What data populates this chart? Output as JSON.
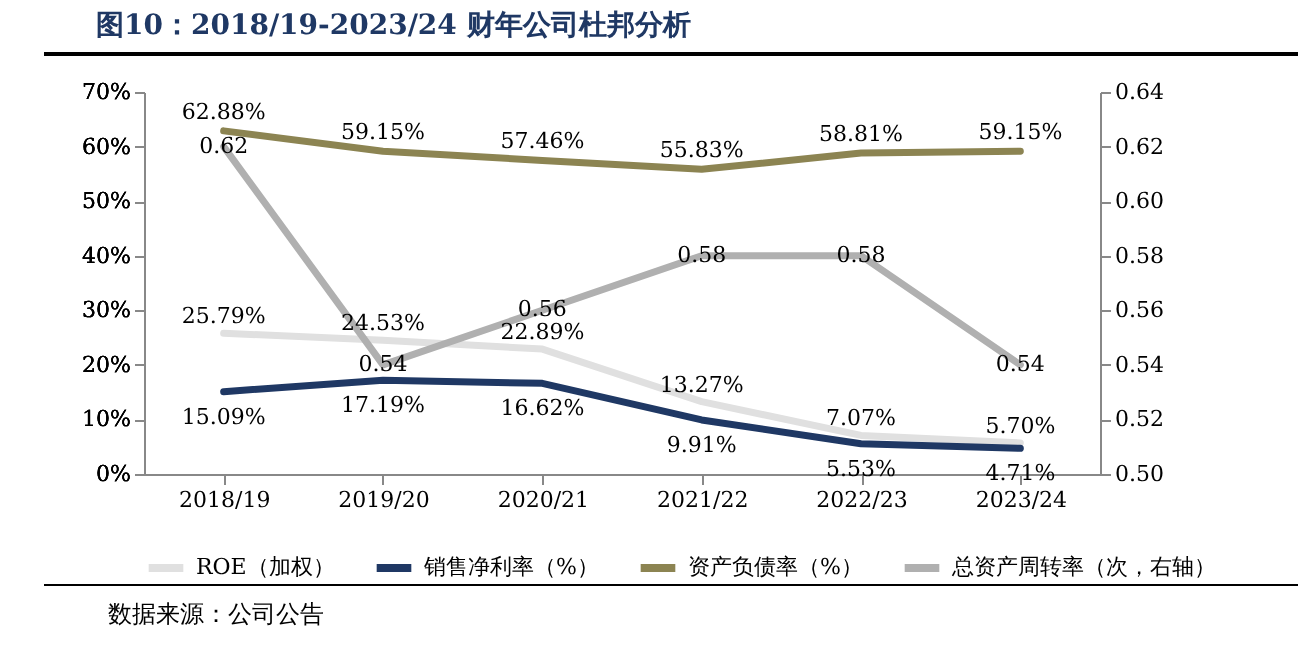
{
  "chart_data": {
    "type": "line",
    "title": "图10：2018/19-2023/24 财年公司杜邦分析",
    "categories": [
      "2018/19",
      "2019/20",
      "2020/21",
      "2021/22",
      "2022/23",
      "2023/24"
    ],
    "series": [
      {
        "name": "ROE（加权）",
        "color": "#e0e0e0",
        "values": [
          25.79,
          24.53,
          22.89,
          13.27,
          7.07,
          5.7
        ],
        "value_labels": [
          "25.79%",
          "24.53%",
          "22.89%",
          "13.27%",
          "7.07%",
          "5.70%"
        ]
      },
      {
        "name": "销售净利率（%）",
        "color": "#1f3864",
        "values": [
          15.09,
          17.19,
          16.62,
          9.91,
          5.53,
          4.71
        ],
        "value_labels": [
          "15.09%",
          "17.19%",
          "16.62%",
          "9.91%",
          "5.53%",
          "4.71%"
        ]
      },
      {
        "name": "资产负债率（%）",
        "color": "#8c8452",
        "values": [
          62.88,
          59.15,
          57.46,
          55.83,
          58.81,
          59.15
        ],
        "value_labels": [
          "62.88%",
          "59.15%",
          "57.46%",
          "55.83%",
          "58.81%",
          "59.15%"
        ]
      },
      {
        "name": "总资产周转率（次，右轴）",
        "color": "#b0b0b0",
        "axis": "y2",
        "values": [
          0.62,
          0.54,
          0.56,
          0.58,
          0.58,
          0.54
        ],
        "value_labels": [
          "0.62",
          "0.54",
          "0.56",
          "0.58",
          "0.58",
          "0.54"
        ]
      }
    ],
    "ylim": [
      0,
      70
    ],
    "yticks": [
      {
        "value": 0,
        "label": "0%"
      },
      {
        "value": 10,
        "label": "10%"
      },
      {
        "value": 20,
        "label": "20%"
      },
      {
        "value": 30,
        "label": "30%"
      },
      {
        "value": 40,
        "label": "40%"
      },
      {
        "value": 50,
        "label": "50%"
      },
      {
        "value": 60,
        "label": "60%"
      },
      {
        "value": 70,
        "label": "70%"
      }
    ],
    "y2lim": [
      0.5,
      0.64
    ],
    "y2ticks": [
      {
        "value": 0.5,
        "label": "0.50"
      },
      {
        "value": 0.52,
        "label": "0.52"
      },
      {
        "value": 0.54,
        "label": "0.54"
      },
      {
        "value": 0.56,
        "label": "0.56"
      },
      {
        "value": 0.58,
        "label": "0.58"
      },
      {
        "value": 0.6,
        "label": "0.60"
      },
      {
        "value": 0.62,
        "label": "0.62"
      },
      {
        "value": 0.64,
        "label": "0.64"
      }
    ],
    "legend": "bottom",
    "grid": false,
    "annotations": [
      "数据来源：公司公告"
    ]
  }
}
